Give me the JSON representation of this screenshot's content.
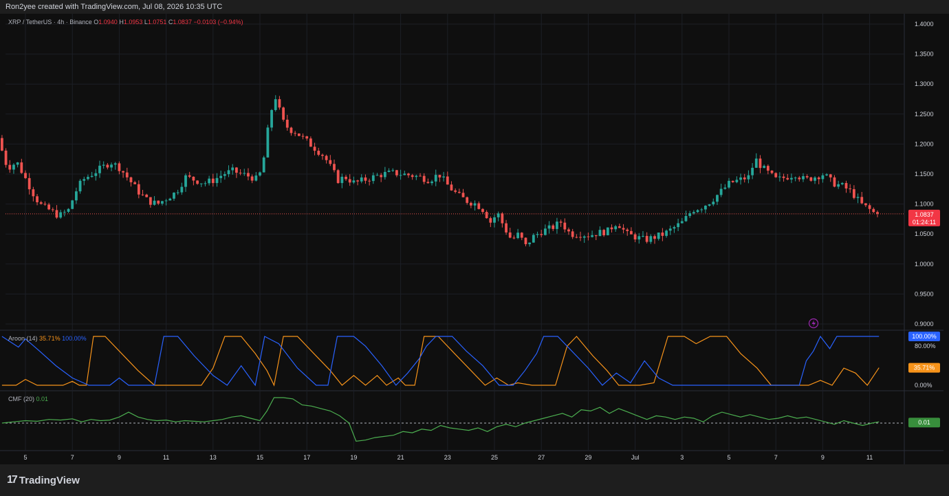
{
  "header": {
    "credit": "Ron2yee created with TradingView.com, Jul 08, 2026 10:35 UTC"
  },
  "legend": {
    "symbol": "XRP / TetherUS · 4h · Binance",
    "open_label": "O",
    "open": "1.0940",
    "high_label": "H",
    "high": "1.0953",
    "low_label": "L",
    "low": "1.0751",
    "close_label": "C",
    "close": "1.0837",
    "change": "−0.0103 (−0.94%)"
  },
  "aroon": {
    "label": "Aroon (14)",
    "down": "35.71%",
    "up": "100.00%",
    "up_tag": "100.00%",
    "down_tag": "35.71%",
    "ticks": [
      "80.00%",
      "0.00%"
    ]
  },
  "cmf": {
    "label": "CMF (20)",
    "value": "0.01",
    "tag": "0.01"
  },
  "price_tag": {
    "price": "1.0837",
    "countdown": "01:24:11"
  },
  "brand": {
    "logo": "17",
    "name": "TradingView"
  },
  "chart_data": {
    "type": "candlestick",
    "y_ticks": [
      "1.4000",
      "1.3500",
      "1.3000",
      "1.2500",
      "1.2000",
      "1.1500",
      "1.1000",
      "1.0500",
      "1.0000",
      "0.9500",
      "0.9000"
    ],
    "x_ticks": [
      "5",
      "7",
      "9",
      "11",
      "13",
      "15",
      "17",
      "19",
      "21",
      "23",
      "25",
      "27",
      "29",
      "Jul",
      "3",
      "5",
      "7",
      "9",
      "11"
    ],
    "ylim": [
      0.9,
      1.4
    ],
    "last_price": 1.0837,
    "colors": {
      "up": "#26a69a",
      "down": "#ef5350",
      "aroon_up": "#2962ff",
      "aroon_down": "#f7931a",
      "cmf": "#4caf50"
    },
    "price_path": [
      [
        4.0,
        1.21
      ],
      [
        4.4,
        1.16
      ],
      [
        4.8,
        1.17
      ],
      [
        5.2,
        1.14
      ],
      [
        5.6,
        1.11
      ],
      [
        5.9,
        1.095
      ],
      [
        6.2,
        1.09
      ],
      [
        6.6,
        1.08
      ],
      [
        7.0,
        1.09
      ],
      [
        7.3,
        1.12
      ],
      [
        7.6,
        1.14
      ],
      [
        8.0,
        1.15
      ],
      [
        8.4,
        1.16
      ],
      [
        8.8,
        1.17
      ],
      [
        9.2,
        1.16
      ],
      [
        9.6,
        1.14
      ],
      [
        10.0,
        1.12
      ],
      [
        10.4,
        1.105
      ],
      [
        10.8,
        1.1
      ],
      [
        11.2,
        1.11
      ],
      [
        11.6,
        1.12
      ],
      [
        12.0,
        1.145
      ],
      [
        12.4,
        1.14
      ],
      [
        12.8,
        1.135
      ],
      [
        13.2,
        1.14
      ],
      [
        13.6,
        1.15
      ],
      [
        14.0,
        1.155
      ],
      [
        14.4,
        1.15
      ],
      [
        14.8,
        1.145
      ],
      [
        15.1,
        1.14
      ],
      [
        15.35,
        1.18
      ],
      [
        15.6,
        1.25
      ],
      [
        15.85,
        1.28
      ],
      [
        16.1,
        1.24
      ],
      [
        16.4,
        1.225
      ],
      [
        16.7,
        1.22
      ],
      [
        17.0,
        1.21
      ],
      [
        17.3,
        1.2
      ],
      [
        17.6,
        1.19
      ],
      [
        17.9,
        1.18
      ],
      [
        18.2,
        1.16
      ],
      [
        18.5,
        1.14
      ],
      [
        18.8,
        1.145
      ],
      [
        19.2,
        1.135
      ],
      [
        19.6,
        1.14
      ],
      [
        20.0,
        1.145
      ],
      [
        20.4,
        1.15
      ],
      [
        20.8,
        1.152
      ],
      [
        21.2,
        1.15
      ],
      [
        21.6,
        1.148
      ],
      [
        22.0,
        1.145
      ],
      [
        22.4,
        1.14
      ],
      [
        22.8,
        1.15
      ],
      [
        23.2,
        1.13
      ],
      [
        23.6,
        1.115
      ],
      [
        24.0,
        1.105
      ],
      [
        24.4,
        1.1
      ],
      [
        24.7,
        1.09
      ],
      [
        25.0,
        1.07
      ],
      [
        25.3,
        1.085
      ],
      [
        25.6,
        1.06
      ],
      [
        25.9,
        1.04
      ],
      [
        26.2,
        1.05
      ],
      [
        26.5,
        1.03
      ],
      [
        26.8,
        1.045
      ],
      [
        27.2,
        1.055
      ],
      [
        27.6,
        1.06
      ],
      [
        28.0,
        1.07
      ],
      [
        28.4,
        1.05
      ],
      [
        28.8,
        1.05
      ],
      [
        29.2,
        1.048
      ],
      [
        29.6,
        1.052
      ],
      [
        30.0,
        1.055
      ],
      [
        30.4,
        1.07
      ],
      [
        30.8,
        1.05
      ],
      [
        31.2,
        1.045
      ],
      [
        31.6,
        1.04
      ],
      [
        32.0,
        1.045
      ],
      [
        32.4,
        1.05
      ],
      [
        32.8,
        1.06
      ],
      [
        33.2,
        1.07
      ],
      [
        33.6,
        1.09
      ],
      [
        34.0,
        1.095
      ],
      [
        34.4,
        1.105
      ],
      [
        34.8,
        1.12
      ],
      [
        35.2,
        1.135
      ],
      [
        35.6,
        1.14
      ],
      [
        36.0,
        1.145
      ],
      [
        36.3,
        1.175
      ],
      [
        36.6,
        1.16
      ],
      [
        36.9,
        1.15
      ],
      [
        37.2,
        1.14
      ],
      [
        37.6,
        1.145
      ],
      [
        38.0,
        1.15
      ],
      [
        38.4,
        1.14
      ],
      [
        38.8,
        1.145
      ],
      [
        39.2,
        1.15
      ],
      [
        39.6,
        1.135
      ],
      [
        40.0,
        1.13
      ],
      [
        40.4,
        1.12
      ],
      [
        40.8,
        1.1
      ],
      [
        41.2,
        1.09
      ],
      [
        41.4,
        1.0837
      ]
    ],
    "aroon_up": [
      [
        4.0,
        100
      ],
      [
        4.7,
        78
      ],
      [
        5.0,
        95
      ],
      [
        5.6,
        70
      ],
      [
        6.3,
        40
      ],
      [
        7.0,
        15
      ],
      [
        7.7,
        0
      ],
      [
        8.2,
        0
      ],
      [
        8.6,
        0
      ],
      [
        9.0,
        15
      ],
      [
        9.4,
        0
      ],
      [
        10.0,
        0
      ],
      [
        10.5,
        0
      ],
      [
        10.9,
        100
      ],
      [
        11.5,
        100
      ],
      [
        12.2,
        60
      ],
      [
        13.0,
        20
      ],
      [
        13.6,
        0
      ],
      [
        14.2,
        40
      ],
      [
        14.8,
        0
      ],
      [
        15.2,
        100
      ],
      [
        15.8,
        85
      ],
      [
        16.6,
        35
      ],
      [
        17.4,
        0
      ],
      [
        17.9,
        0
      ],
      [
        18.3,
        100
      ],
      [
        19.0,
        100
      ],
      [
        19.5,
        80
      ],
      [
        20.2,
        40
      ],
      [
        20.8,
        0
      ],
      [
        21.3,
        25
      ],
      [
        21.8,
        55
      ],
      [
        22.1,
        80
      ],
      [
        22.5,
        100
      ],
      [
        23.2,
        100
      ],
      [
        23.8,
        70
      ],
      [
        24.5,
        40
      ],
      [
        25.2,
        0
      ],
      [
        25.8,
        0
      ],
      [
        26.3,
        30
      ],
      [
        26.8,
        65
      ],
      [
        27.1,
        100
      ],
      [
        27.7,
        100
      ],
      [
        28.3,
        70
      ],
      [
        29.0,
        35
      ],
      [
        29.6,
        0
      ],
      [
        30.2,
        25
      ],
      [
        30.8,
        5
      ],
      [
        31.4,
        50
      ],
      [
        32.0,
        15
      ],
      [
        32.6,
        0
      ],
      [
        33.2,
        0
      ],
      [
        33.8,
        0
      ],
      [
        34.3,
        0
      ],
      [
        35.0,
        0
      ],
      [
        35.6,
        0
      ],
      [
        36.2,
        0
      ],
      [
        36.6,
        0
      ],
      [
        37.0,
        0
      ],
      [
        37.5,
        0
      ],
      [
        38.0,
        0
      ],
      [
        38.3,
        50
      ],
      [
        38.6,
        70
      ],
      [
        38.9,
        100
      ],
      [
        39.3,
        75
      ],
      [
        39.6,
        100
      ],
      [
        40.0,
        100
      ],
      [
        40.5,
        100
      ],
      [
        41.0,
        100
      ],
      [
        41.4,
        100
      ]
    ],
    "aroon_down": [
      [
        4.0,
        0
      ],
      [
        4.6,
        0
      ],
      [
        5.0,
        12
      ],
      [
        5.5,
        0
      ],
      [
        6.2,
        0
      ],
      [
        6.6,
        0
      ],
      [
        7.0,
        8
      ],
      [
        7.3,
        0
      ],
      [
        7.6,
        0
      ],
      [
        7.9,
        100
      ],
      [
        8.4,
        100
      ],
      [
        9.0,
        70
      ],
      [
        9.8,
        30
      ],
      [
        10.5,
        0
      ],
      [
        11.2,
        0
      ],
      [
        11.9,
        0
      ],
      [
        12.5,
        0
      ],
      [
        13.0,
        35
      ],
      [
        13.5,
        100
      ],
      [
        14.2,
        100
      ],
      [
        14.8,
        65
      ],
      [
        15.3,
        30
      ],
      [
        15.6,
        0
      ],
      [
        16.0,
        100
      ],
      [
        16.6,
        100
      ],
      [
        17.3,
        65
      ],
      [
        18.0,
        30
      ],
      [
        18.5,
        0
      ],
      [
        19.0,
        20
      ],
      [
        19.5,
        0
      ],
      [
        20.0,
        20
      ],
      [
        20.4,
        0
      ],
      [
        20.9,
        15
      ],
      [
        21.2,
        0
      ],
      [
        21.6,
        0
      ],
      [
        22.0,
        100
      ],
      [
        22.6,
        100
      ],
      [
        23.3,
        65
      ],
      [
        24.0,
        30
      ],
      [
        24.6,
        0
      ],
      [
        25.1,
        15
      ],
      [
        25.6,
        0
      ],
      [
        26.0,
        5
      ],
      [
        26.6,
        0
      ],
      [
        27.1,
        0
      ],
      [
        27.6,
        0
      ],
      [
        28.1,
        80
      ],
      [
        28.5,
        100
      ],
      [
        29.2,
        60
      ],
      [
        29.8,
        30
      ],
      [
        30.3,
        0
      ],
      [
        30.6,
        0
      ],
      [
        31.2,
        0
      ],
      [
        31.8,
        5
      ],
      [
        32.4,
        100
      ],
      [
        33.1,
        100
      ],
      [
        33.6,
        85
      ],
      [
        34.2,
        100
      ],
      [
        34.9,
        100
      ],
      [
        35.5,
        65
      ],
      [
        36.2,
        35
      ],
      [
        36.8,
        0
      ],
      [
        37.4,
        0
      ],
      [
        37.9,
        0
      ],
      [
        38.4,
        0
      ],
      [
        38.9,
        10
      ],
      [
        39.4,
        0
      ],
      [
        39.9,
        35
      ],
      [
        40.4,
        25
      ],
      [
        40.9,
        0
      ],
      [
        41.4,
        35.71
      ]
    ],
    "cmf_ylim": [
      -0.2,
      0.25
    ],
    "cmf": [
      [
        4.0,
        0.0
      ],
      [
        4.5,
        0.01
      ],
      [
        5.0,
        0.02
      ],
      [
        5.5,
        0.015
      ],
      [
        6.0,
        0.03
      ],
      [
        6.5,
        0.025
      ],
      [
        7.0,
        0.035
      ],
      [
        7.4,
        0.01
      ],
      [
        7.8,
        0.03
      ],
      [
        8.2,
        0.02
      ],
      [
        8.6,
        0.025
      ],
      [
        9.0,
        0.05
      ],
      [
        9.4,
        0.09
      ],
      [
        9.8,
        0.05
      ],
      [
        10.2,
        0.03
      ],
      [
        10.6,
        0.02
      ],
      [
        11.0,
        0.025
      ],
      [
        11.4,
        0.01
      ],
      [
        11.8,
        0.02
      ],
      [
        12.2,
        0.015
      ],
      [
        12.6,
        0.01
      ],
      [
        13.0,
        0.02
      ],
      [
        13.4,
        0.03
      ],
      [
        13.8,
        0.05
      ],
      [
        14.2,
        0.06
      ],
      [
        14.6,
        0.04
      ],
      [
        15.0,
        0.02
      ],
      [
        15.3,
        0.1
      ],
      [
        15.6,
        0.21
      ],
      [
        16.0,
        0.21
      ],
      [
        16.4,
        0.2
      ],
      [
        16.8,
        0.15
      ],
      [
        17.2,
        0.14
      ],
      [
        17.6,
        0.12
      ],
      [
        18.0,
        0.1
      ],
      [
        18.4,
        0.06
      ],
      [
        18.8,
        0.0
      ],
      [
        19.1,
        -0.15
      ],
      [
        19.5,
        -0.14
      ],
      [
        19.9,
        -0.12
      ],
      [
        20.3,
        -0.11
      ],
      [
        20.7,
        -0.1
      ],
      [
        21.1,
        -0.07
      ],
      [
        21.5,
        -0.08
      ],
      [
        21.9,
        -0.05
      ],
      [
        22.3,
        -0.06
      ],
      [
        22.7,
        -0.02
      ],
      [
        23.1,
        -0.04
      ],
      [
        23.5,
        -0.05
      ],
      [
        23.9,
        -0.06
      ],
      [
        24.3,
        -0.04
      ],
      [
        24.7,
        -0.07
      ],
      [
        25.1,
        -0.03
      ],
      [
        25.5,
        -0.01
      ],
      [
        25.9,
        -0.03
      ],
      [
        26.3,
        0.0
      ],
      [
        26.7,
        0.02
      ],
      [
        27.1,
        0.04
      ],
      [
        27.5,
        0.06
      ],
      [
        27.9,
        0.08
      ],
      [
        28.3,
        0.05
      ],
      [
        28.7,
        0.11
      ],
      [
        29.1,
        0.1
      ],
      [
        29.5,
        0.13
      ],
      [
        29.9,
        0.08
      ],
      [
        30.3,
        0.12
      ],
      [
        30.7,
        0.09
      ],
      [
        31.1,
        0.06
      ],
      [
        31.5,
        0.03
      ],
      [
        31.9,
        0.06
      ],
      [
        32.3,
        0.05
      ],
      [
        32.7,
        0.03
      ],
      [
        33.1,
        0.05
      ],
      [
        33.5,
        0.04
      ],
      [
        33.9,
        0.01
      ],
      [
        34.3,
        0.06
      ],
      [
        34.7,
        0.09
      ],
      [
        35.1,
        0.07
      ],
      [
        35.5,
        0.05
      ],
      [
        35.9,
        0.07
      ],
      [
        36.3,
        0.05
      ],
      [
        36.7,
        0.03
      ],
      [
        37.1,
        0.04
      ],
      [
        37.5,
        0.06
      ],
      [
        37.9,
        0.04
      ],
      [
        38.3,
        0.05
      ],
      [
        38.7,
        0.03
      ],
      [
        39.1,
        0.01
      ],
      [
        39.5,
        -0.01
      ],
      [
        39.9,
        0.02
      ],
      [
        40.3,
        0.0
      ],
      [
        40.7,
        -0.02
      ],
      [
        41.1,
        0.0
      ],
      [
        41.4,
        0.01
      ]
    ]
  }
}
